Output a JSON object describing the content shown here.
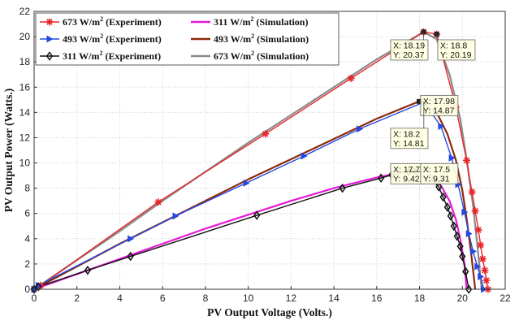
{
  "chart_data": {
    "type": "line",
    "xlabel": "PV Output Voltage (Volts.)",
    "ylabel": "PV Output Power (Watts.)",
    "xlim": [
      0,
      22
    ],
    "ylim": [
      0,
      22
    ],
    "xticks": [
      0,
      2,
      4,
      6,
      8,
      10,
      12,
      14,
      16,
      18,
      20,
      22
    ],
    "yticks": [
      0,
      2,
      4,
      6,
      8,
      10,
      12,
      14,
      16,
      18,
      20,
      22
    ],
    "grid": true,
    "legend_position": "top-left",
    "legend_unit": "W/m",
    "legend_sup": "2",
    "series": [
      {
        "name": "673 W/m² (Experiment)",
        "label_main": "673 W/m",
        "label_tail": "(Experiment)",
        "color": "#e8252a",
        "marker": "star",
        "x": [
          0,
          0.3,
          5.8,
          10.8,
          14.8,
          18.19,
          18.8,
          19.7,
          20.2,
          20.45,
          20.6,
          20.75,
          20.85,
          20.95,
          21.05,
          21.12,
          21.2
        ],
        "y": [
          0,
          0.3,
          6.9,
          12.3,
          16.7,
          20.37,
          20.19,
          14.4,
          10.2,
          7.7,
          6.2,
          4.7,
          3.5,
          2.4,
          1.5,
          0.7,
          0
        ]
      },
      {
        "name": "493 W/m² (Experiment)",
        "label_main": "493 W/m",
        "label_tail": "(Experiment)",
        "color": "#2448e0",
        "marker": "triangle-right",
        "x": [
          0,
          0.2,
          4.5,
          6.6,
          9.9,
          12.6,
          15.2,
          18.2,
          19.0,
          19.5,
          19.8,
          20.1,
          20.3,
          20.5,
          20.7,
          20.85,
          21.0
        ],
        "y": [
          0,
          0.3,
          4.0,
          5.8,
          8.4,
          10.55,
          12.7,
          14.81,
          12.9,
          10.4,
          8.3,
          6.1,
          4.4,
          3.0,
          1.8,
          1.0,
          0
        ]
      },
      {
        "name": "311 W/m² (Experiment)",
        "label_main": "311 W/m",
        "label_tail": "(Experiment)",
        "color": "#111111",
        "marker": "diamond",
        "x": [
          0,
          0.2,
          2.5,
          4.5,
          10.4,
          14.4,
          16.2,
          16.7,
          17.5,
          18.5,
          18.9,
          19.1,
          19.3,
          19.45,
          19.6,
          19.75,
          19.9,
          20.0,
          20.15,
          20.3
        ],
        "y": [
          0,
          0.2,
          1.5,
          2.6,
          5.85,
          8.0,
          8.8,
          9.05,
          9.31,
          8.8,
          8.1,
          7.3,
          6.5,
          5.8,
          5.0,
          4.2,
          3.4,
          2.6,
          1.4,
          0
        ]
      },
      {
        "name": "311 W/m² (Simulation)",
        "label_main": "311 W/m",
        "label_tail": "(Simulation)",
        "color": "#e619d8",
        "marker": "none",
        "x": [
          0,
          2,
          4,
          6,
          8,
          10,
          12,
          14,
          16,
          17,
          17.74,
          18.5,
          19.0,
          19.4,
          19.7,
          19.9,
          20.1,
          20.2
        ],
        "y": [
          0,
          1.2,
          2.4,
          3.6,
          4.8,
          5.9,
          7.0,
          8.0,
          8.85,
          9.2,
          9.422,
          9.0,
          8.2,
          7.0,
          5.5,
          4.0,
          2.0,
          0
        ]
      },
      {
        "name": "493 W/m² (Simulation)",
        "label_main": "493 W/m",
        "label_tail": "(Simulation)",
        "color": "#8b2a0a",
        "marker": "none",
        "x": [
          0,
          2,
          4,
          6,
          8,
          10,
          12,
          14,
          16,
          17.98,
          18.8,
          19.3,
          19.7,
          20.0,
          20.2,
          20.4,
          20.6
        ],
        "y": [
          0,
          1.8,
          3.6,
          5.3,
          7.0,
          8.7,
          10.3,
          11.9,
          13.5,
          14.87,
          14.0,
          12.3,
          10.2,
          7.8,
          5.6,
          3.0,
          0
        ]
      },
      {
        "name": "673 W/m² (Simulation)",
        "label_main": "673 W/m",
        "label_tail": "(Simulation)",
        "color": "#8a8a8a",
        "marker": "none",
        "x": [
          0,
          2,
          4,
          6,
          8,
          10,
          12,
          14,
          16,
          18.19,
          18.8,
          19.4,
          19.9,
          20.2,
          20.5,
          20.7,
          20.9
        ],
        "y": [
          0,
          2.3,
          4.6,
          7.0,
          9.3,
          11.6,
          13.8,
          16.0,
          18.2,
          20.37,
          19.8,
          17.0,
          13.5,
          10.3,
          6.6,
          3.5,
          0
        ]
      }
    ],
    "legend_order": [
      0,
      3,
      1,
      4,
      2,
      5
    ],
    "markers": [
      {
        "x": 18.19,
        "y": 20.37,
        "color": "#222222"
      },
      {
        "x": 18.8,
        "y": 20.19,
        "color": "#222222"
      },
      {
        "x": 17.98,
        "y": 14.87,
        "color": "#222222"
      },
      {
        "x": 18.2,
        "y": 14.81,
        "color": "#222222"
      },
      {
        "x": 17.74,
        "y": 9.422,
        "color": "#222222"
      },
      {
        "x": 17.5,
        "y": 9.31,
        "color": "#222222"
      }
    ],
    "datatips": [
      {
        "x_text": "X: 18.19",
        "y_text": "Y: 20.37",
        "anchor_x": 18.19,
        "anchor_y": 20.37,
        "box_x": 16.65,
        "box_y": 19.75
      },
      {
        "x_text": "X: 18.8",
        "y_text": "Y: 20.19",
        "anchor_x": 18.8,
        "anchor_y": 20.19,
        "box_x": 18.85,
        "box_y": 19.75
      },
      {
        "x_text": "X: 17.98",
        "y_text": "Y: 14.87",
        "anchor_x": 17.98,
        "anchor_y": 14.87,
        "box_x": 18.05,
        "box_y": 15.35
      },
      {
        "x_text": "X: 18.2",
        "y_text": "Y: 14.81",
        "anchor_x": 18.2,
        "anchor_y": 14.81,
        "box_x": 16.65,
        "box_y": 12.75
      },
      {
        "x_text": "X: 17.74",
        "y_text": "Y: 9.422",
        "anchor_x": 17.74,
        "anchor_y": 9.422,
        "box_x": 16.65,
        "box_y": 9.95
      },
      {
        "x_text": "X: 17.5",
        "y_text": "Y: 9.31",
        "anchor_x": 17.5,
        "anchor_y": 9.31,
        "box_x": 18.05,
        "box_y": 9.95
      }
    ]
  }
}
